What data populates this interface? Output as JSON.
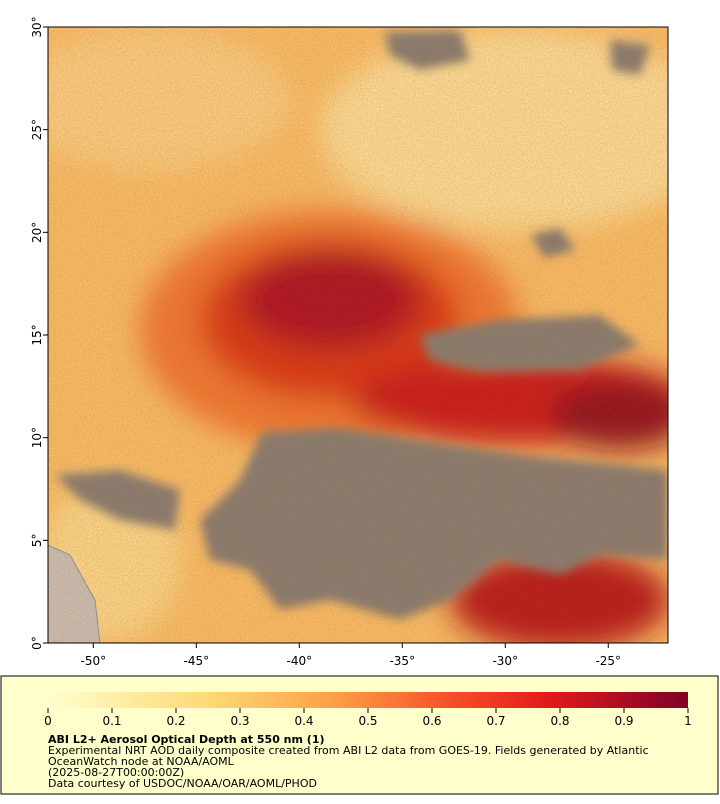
{
  "map": {
    "xlim": [
      -52.2,
      -22.1
    ],
    "ylim": [
      0,
      30
    ],
    "xticks": [
      {
        "value": -50,
        "label": "-50°"
      },
      {
        "value": -45,
        "label": "-45°"
      },
      {
        "value": -40,
        "label": "-40°"
      },
      {
        "value": -35,
        "label": "-35°"
      },
      {
        "value": -30,
        "label": "-30°"
      },
      {
        "value": -25,
        "label": "-25°"
      }
    ],
    "yticks": [
      {
        "value": 0,
        "label": "0°"
      },
      {
        "value": 5,
        "label": "5°"
      },
      {
        "value": 10,
        "label": "10°"
      },
      {
        "value": 15,
        "label": "15°"
      },
      {
        "value": 20,
        "label": "20°"
      },
      {
        "value": 25,
        "label": "25°"
      },
      {
        "value": 30,
        "label": "30°"
      }
    ]
  },
  "colorbar": {
    "lim": [
      0,
      1
    ],
    "ticks": [
      0,
      0.1,
      0.2,
      0.3,
      0.4,
      0.5,
      0.6,
      0.7,
      0.8,
      0.9,
      1
    ]
  },
  "caption": {
    "title": "ABI L2+ Aerosol Optical Depth at 550 nm (1)",
    "lines": [
      "Experimental NRT AOD daily composite created from ABI L2 data from GOES-19. Fields generated by Atlantic",
      "OceanWatch node at NOAA/AOML",
      "(2025-08-27T00:00:00Z)",
      "Data courtesy of USDOC/NOAA/OAR/AOML/PHOD"
    ]
  }
}
